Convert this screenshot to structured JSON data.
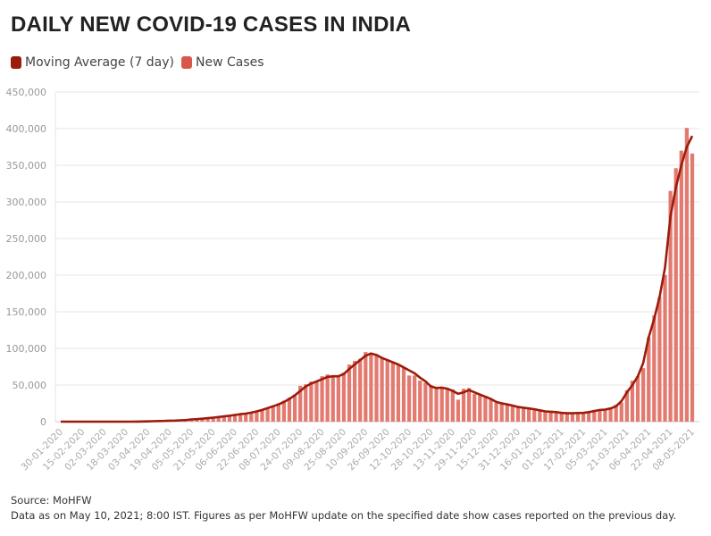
{
  "title": "DAILY NEW COVID-19 CASES IN INDIA",
  "legend": [
    {
      "label": "Moving Average (7 day)",
      "color": "#9b1c0b"
    },
    {
      "label": "New Cases",
      "color": "#d9574a"
    }
  ],
  "footer": {
    "source": "Source: MoHFW",
    "note": "Data as on May 10, 2021; 8:00 IST. Figures as per MoHFW update on the specified date show cases reported on the previous day."
  },
  "chart_data": {
    "type": "bar",
    "title": "DAILY NEW COVID-19 CASES IN INDIA",
    "xlabel": "",
    "ylabel": "",
    "ylim": [
      0,
      450000
    ],
    "yticks": [
      "0",
      "50,000",
      "100,000",
      "150,000",
      "200,000",
      "250,000",
      "300,000",
      "350,000",
      "400,000",
      "450,000"
    ],
    "grid": true,
    "legend_position": "top-left",
    "x_interval_days": 4,
    "xtick_labels": [
      "30-01-2020",
      "15-02-2020",
      "02-03-2020",
      "18-03-2020",
      "03-04-2020",
      "19-04-2020",
      "05-05-2020",
      "21-05-2020",
      "06-06-2020",
      "22-06-2020",
      "08-07-2020",
      "24-07-2020",
      "09-08-2020",
      "25-08-2020",
      "10-09-2020",
      "26-09-2020",
      "12-10-2020",
      "28-10-2020",
      "13-11-2020",
      "29-11-2020",
      "15-12-2020",
      "31-12-2020",
      "16-01-2021",
      "01-02-2021",
      "17-02-2021",
      "05-03-2021",
      "21-03-2021",
      "06-04-2021",
      "22-04-2021",
      "08-05-2021"
    ],
    "series": [
      {
        "name": "New Cases",
        "kind": "bar",
        "color": "#e27a70",
        "values": [
          0,
          0,
          0,
          0,
          0,
          0,
          0,
          0,
          0,
          0,
          10,
          20,
          30,
          80,
          150,
          500,
          500,
          800,
          900,
          1200,
          1500,
          1800,
          1900,
          2300,
          3500,
          3600,
          4200,
          5000,
          5600,
          6500,
          7500,
          8400,
          9900,
          11000,
          11500,
          12900,
          14900,
          17000,
          19100,
          22300,
          24900,
          28600,
          33000,
          37100,
          48900,
          51000,
          54700,
          55000,
          62000,
          64500,
          63000,
          61000,
          67000,
          78000,
          83000,
          86000,
          95000,
          94000,
          92000,
          88000,
          85000,
          80000,
          78000,
          74000,
          63000,
          63000,
          56000,
          53000,
          49900,
          46000,
          47000,
          45000,
          44000,
          30000,
          45000,
          46000,
          38000,
          36000,
          35000,
          32000,
          26000,
          25000,
          23000,
          22000,
          20000,
          18000,
          18000,
          17000,
          15000,
          13500,
          13000,
          12500,
          11500,
          12000,
          11000,
          12000,
          12000,
          14000,
          16000,
          16500,
          17000,
          18000,
          23000,
          26000,
          43000,
          56000,
          62000,
          73000,
          115000,
          145000,
          170000,
          200000,
          315000,
          346000,
          370000,
          401000,
          366000
        ]
      },
      {
        "name": "Moving Average (7 day)",
        "kind": "line",
        "color": "#9b1c0b",
        "values": [
          0,
          0,
          0,
          0,
          0,
          0,
          0,
          0,
          0,
          0,
          0,
          10,
          20,
          50,
          100,
          250,
          400,
          600,
          800,
          1000,
          1300,
          1500,
          1800,
          2200,
          3000,
          3400,
          4000,
          4800,
          5500,
          6300,
          7200,
          8100,
          9200,
          10200,
          11000,
          12300,
          14000,
          16000,
          18500,
          21000,
          23500,
          27000,
          31000,
          36000,
          42000,
          48000,
          52000,
          55000,
          58000,
          61000,
          62000,
          62000,
          65000,
          72000,
          78000,
          84000,
          90000,
          93000,
          91000,
          87000,
          84000,
          81000,
          78000,
          74000,
          70000,
          66000,
          60000,
          55000,
          48000,
          46000,
          46500,
          45000,
          42000,
          38000,
          40000,
          43000,
          40000,
          37000,
          34000,
          31000,
          27000,
          25000,
          23500,
          22000,
          20000,
          19000,
          18000,
          17000,
          15500,
          14000,
          13500,
          13000,
          12000,
          11500,
          11500,
          11800,
          12000,
          13000,
          14500,
          16000,
          16500,
          18000,
          21000,
          28000,
          40000,
          50000,
          62000,
          80000,
          115000,
          140000,
          170000,
          210000,
          280000,
          320000,
          350000,
          375000,
          390000
        ]
      }
    ]
  }
}
